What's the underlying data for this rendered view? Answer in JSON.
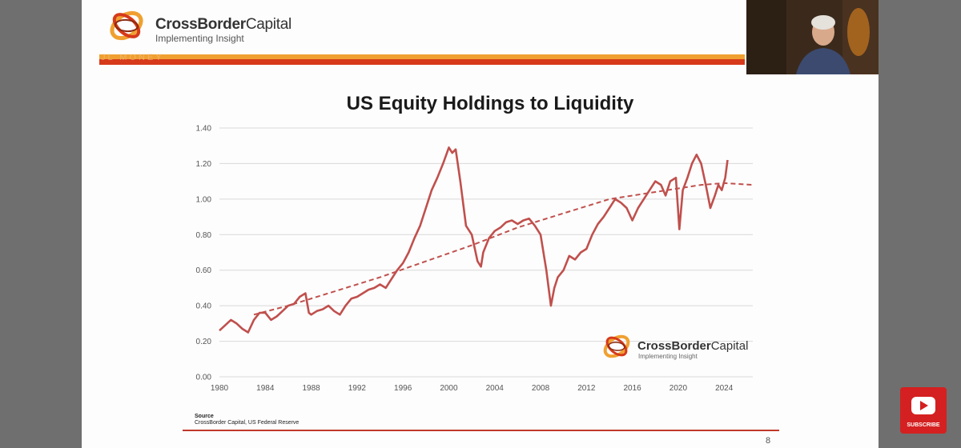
{
  "header": {
    "brand_name_bold": "CrossBorder",
    "brand_name_light": "Capital",
    "brand_tagline": "Implementing Insight",
    "faded_banner_text": "JL MONEY"
  },
  "chart_data": {
    "type": "line",
    "title": "US Equity Holdings to Liquidity",
    "xlabel": "",
    "ylabel": "",
    "ylim": [
      0,
      1.4
    ],
    "xlim": [
      1980,
      2026.5
    ],
    "x_ticks": [
      "1980",
      "1984",
      "1988",
      "1992",
      "1996",
      "2000",
      "2004",
      "2008",
      "2012",
      "2016",
      "2020",
      "2024"
    ],
    "y_ticks": [
      "0.00",
      "0.20",
      "0.40",
      "0.60",
      "0.80",
      "1.00",
      "1.20",
      "1.40"
    ],
    "grid": true,
    "series": [
      {
        "name": "US Equity Holdings to Liquidity",
        "style": "solid",
        "color": "#c0504d",
        "x": [
          1980.0,
          1980.5,
          1981.0,
          1981.5,
          1982.0,
          1982.5,
          1983.0,
          1983.5,
          1984.0,
          1984.5,
          1985.0,
          1985.5,
          1986.0,
          1986.5,
          1987.0,
          1987.5,
          1987.8,
          1988.0,
          1988.5,
          1989.0,
          1989.5,
          1990.0,
          1990.5,
          1991.0,
          1991.5,
          1992.0,
          1992.5,
          1993.0,
          1993.5,
          1994.0,
          1994.5,
          1995.0,
          1995.5,
          1996.0,
          1996.5,
          1997.0,
          1997.5,
          1998.0,
          1998.5,
          1999.0,
          1999.5,
          2000.0,
          2000.3,
          2000.6,
          2001.0,
          2001.5,
          2002.0,
          2002.5,
          2002.8,
          2003.0,
          2003.5,
          2004.0,
          2004.5,
          2005.0,
          2005.5,
          2006.0,
          2006.5,
          2007.0,
          2007.5,
          2008.0,
          2008.5,
          2008.9,
          2009.2,
          2009.5,
          2010.0,
          2010.5,
          2011.0,
          2011.5,
          2012.0,
          2012.5,
          2013.0,
          2013.5,
          2014.0,
          2014.5,
          2015.0,
          2015.5,
          2016.0,
          2016.5,
          2017.0,
          2017.5,
          2018.0,
          2018.5,
          2018.9,
          2019.3,
          2019.8,
          2020.1,
          2020.4,
          2020.8,
          2021.2,
          2021.6,
          2022.0,
          2022.4,
          2022.8,
          2023.2,
          2023.5,
          2023.8,
          2024.1,
          2024.3
        ],
        "values": [
          0.26,
          0.29,
          0.32,
          0.3,
          0.27,
          0.25,
          0.32,
          0.36,
          0.36,
          0.32,
          0.34,
          0.37,
          0.4,
          0.41,
          0.45,
          0.47,
          0.36,
          0.35,
          0.37,
          0.38,
          0.4,
          0.37,
          0.35,
          0.4,
          0.44,
          0.45,
          0.47,
          0.49,
          0.5,
          0.52,
          0.5,
          0.55,
          0.6,
          0.64,
          0.7,
          0.78,
          0.85,
          0.95,
          1.05,
          1.12,
          1.2,
          1.29,
          1.26,
          1.28,
          1.1,
          0.85,
          0.8,
          0.65,
          0.62,
          0.7,
          0.78,
          0.82,
          0.84,
          0.87,
          0.88,
          0.86,
          0.88,
          0.89,
          0.85,
          0.8,
          0.6,
          0.4,
          0.5,
          0.56,
          0.6,
          0.68,
          0.66,
          0.7,
          0.72,
          0.8,
          0.86,
          0.9,
          0.95,
          1.0,
          0.98,
          0.95,
          0.88,
          0.95,
          1.0,
          1.05,
          1.1,
          1.08,
          1.02,
          1.1,
          1.12,
          0.83,
          1.05,
          1.12,
          1.2,
          1.25,
          1.2,
          1.08,
          0.95,
          1.02,
          1.08,
          1.05,
          1.12,
          1.22
        ]
      },
      {
        "name": "Trend",
        "style": "dashed",
        "color": "#c0504d",
        "x": [
          1983,
          1986,
          1990,
          1994,
          1998,
          2002,
          2006,
          2010,
          2014,
          2018,
          2022,
          2024,
          2026.5
        ],
        "values": [
          0.35,
          0.4,
          0.48,
          0.56,
          0.65,
          0.74,
          0.84,
          0.92,
          1.0,
          1.04,
          1.08,
          1.09,
          1.08
        ]
      }
    ]
  },
  "inchart_logo": {
    "name_bold": "CrossBorder",
    "name_light": "Capital",
    "tagline": "Implementing Insight"
  },
  "footer": {
    "source_heading": "Source",
    "source_text": "CrossBorder Capital, US Federal Reserve",
    "page_number": "8"
  },
  "youtube": {
    "subscribe_label": "SUBSCRIBE"
  },
  "colors": {
    "accent_red": "#d63a1a",
    "accent_orange": "#f0a030",
    "series_color": "#c0504d"
  }
}
